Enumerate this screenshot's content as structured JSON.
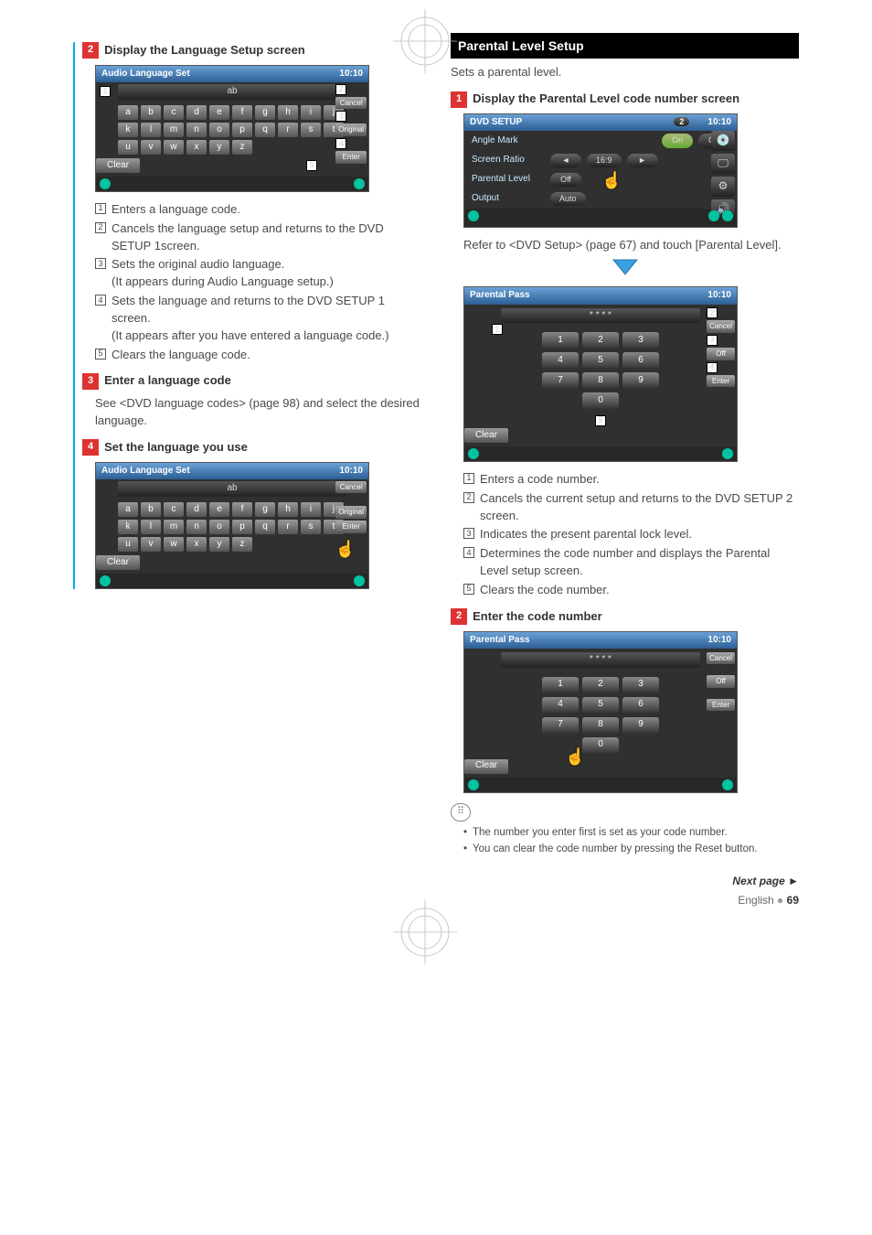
{
  "left": {
    "step2": {
      "num": "2",
      "title": "Display the Language Setup screen"
    },
    "audioSet": {
      "title": "Audio Language Set",
      "clock": "10:10",
      "field": "ab",
      "keys": [
        "a",
        "b",
        "c",
        "d",
        "e",
        "f",
        "g",
        "h",
        "i",
        "j",
        "k",
        "l",
        "m",
        "n",
        "o",
        "p",
        "q",
        "r",
        "s",
        "t",
        "u",
        "v",
        "w",
        "x",
        "y",
        "z"
      ],
      "clear": "Clear",
      "side": [
        "Cancel",
        "Original",
        "Enter"
      ]
    },
    "list1": {
      "i1": "Enters a language code.",
      "i2": "Cancels the language setup and returns to the DVD SETUP 1screen.",
      "i3a": "Sets the original audio language.",
      "i3b": "(It appears during Audio Language setup.)",
      "i4a": "Sets the language and returns to the DVD SETUP 1 screen.",
      "i4b": "(It appears after you have entered a language code.)",
      "i5": "Clears the language code."
    },
    "step3": {
      "num": "3",
      "title": "Enter a language code"
    },
    "step3_body": "See <DVD language codes> (page 98) and select the desired language.",
    "step4": {
      "num": "4",
      "title": "Set the language you use"
    }
  },
  "right": {
    "section": "Parental Level Setup",
    "intro": "Sets a parental level.",
    "step1": {
      "num": "1",
      "title": "Display the Parental Level code number screen"
    },
    "dvd": {
      "title": "DVD SETUP",
      "clock": "10:10",
      "tab": "2",
      "r1": {
        "label": "Angle Mark",
        "on": "On",
        "off": "Off"
      },
      "r2": {
        "label": "Screen Ratio",
        "val": "16:9"
      },
      "r3": {
        "label": "Parental Level",
        "val": "Off"
      },
      "r4": {
        "label": "Output",
        "val": "Auto"
      }
    },
    "refer": "Refer to <DVD Setup> (page 67) and touch [Parental Level].",
    "pass": {
      "title": "Parental Pass",
      "clock": "10:10",
      "mask": "* * * *",
      "level": "Off",
      "cancel": "Cancel",
      "enter": "Enter",
      "clear": "Clear"
    },
    "list2": {
      "i1": "Enters a code number.",
      "i2": "Cancels the current setup and returns to the DVD SETUP 2 screen.",
      "i3": "Indicates the present parental lock level.",
      "i4": "Determines the code number and displays the Parental Level setup screen.",
      "i5": "Clears the code number."
    },
    "step2": {
      "num": "2",
      "title": "Enter the code number"
    },
    "notes": {
      "n1": "The number you enter first is set as your code number.",
      "n2": "You can clear the code number by pressing the Reset button."
    }
  },
  "footer": {
    "next": "Next page ",
    "lang": "English",
    "pg": "69"
  },
  "colors": {
    "accent": "#00aeef",
    "red": "#d33"
  }
}
